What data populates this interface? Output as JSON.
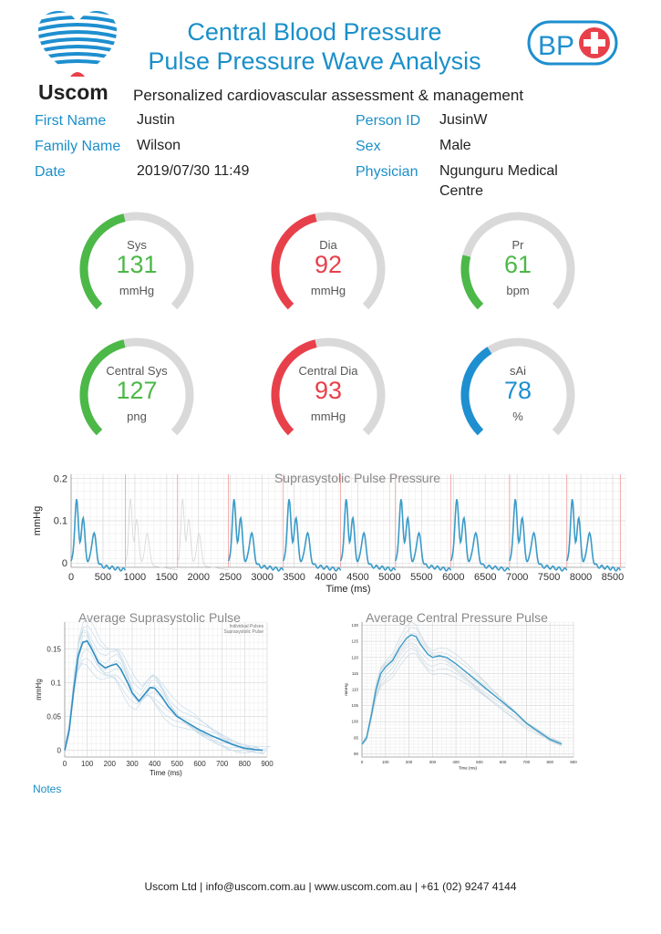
{
  "header": {
    "brand": "Uscom",
    "title_line1": "Central Blood Pressure",
    "title_line2": "Pulse Pressure Wave Analysis",
    "tagline": "Personalized cardiovascular assessment & management",
    "badge": "BP"
  },
  "patient": {
    "first_name_label": "First Name",
    "first_name": "Justin",
    "family_name_label": "Family Name",
    "family_name": "Wilson",
    "date_label": "Date",
    "date": "2019/07/30 11:49",
    "person_id_label": "Person ID",
    "person_id": "JusinW",
    "sex_label": "Sex",
    "sex": "Male",
    "physician_label": "Physician",
    "physician_line1": "Ngunguru Medical",
    "physician_line2": "Centre"
  },
  "gauges": [
    {
      "label": "Sys",
      "value": "131",
      "unit": "mmHg",
      "fraction": 0.45,
      "color": "#4cb848"
    },
    {
      "label": "Dia",
      "value": "92",
      "unit": "mmHg",
      "fraction": 0.45,
      "color": "#e8404a"
    },
    {
      "label": "Pr",
      "value": "61",
      "unit": "bpm",
      "fraction": 0.22,
      "color": "#4cb848"
    },
    {
      "label": "Central Sys",
      "value": "127",
      "unit": "png",
      "fraction": 0.45,
      "color": "#4cb848"
    },
    {
      "label": "Central Dia",
      "value": "93",
      "unit": "mmHg",
      "fraction": 0.45,
      "color": "#e8404a"
    },
    {
      "label": "sAi",
      "value": "78",
      "unit": "%",
      "fraction": 0.38,
      "color": "#1e8fd0"
    }
  ],
  "chart_data": [
    {
      "type": "line",
      "title": "Suprasystolic Pulse Pressure",
      "xlabel": "Time (ms)",
      "ylabel": "mmHg",
      "x_ticks": [
        0,
        500,
        1000,
        1500,
        2000,
        2500,
        3000,
        3500,
        4000,
        4500,
        5000,
        5500,
        6000,
        6500,
        7000,
        7500,
        8000,
        8500
      ],
      "y_ticks": [
        0,
        0.1,
        0.2
      ],
      "xlim": [
        0,
        8700
      ],
      "ylim": [
        -0.01,
        0.21
      ],
      "beat_markers": [
        850,
        1670,
        2470,
        3330,
        4230,
        5090,
        5960,
        6880,
        7780,
        8620
      ],
      "beat_starts": [
        0,
        2470,
        3330,
        4230,
        5090,
        5960,
        6880,
        7780
      ],
      "beat_durations": [
        850,
        860,
        900,
        860,
        870,
        920,
        900,
        840
      ]
    },
    {
      "type": "line",
      "title": "Average Suprasystolic Pulse",
      "xlabel": "Time (ms)",
      "ylabel": "mmHg",
      "legend": [
        "Individual Pulses",
        "Suprasystolic Pulse"
      ],
      "x_ticks": [
        0,
        100,
        200,
        300,
        400,
        500,
        600,
        700,
        800,
        900
      ],
      "y_ticks": [
        0,
        0.05,
        0.1,
        0.15
      ],
      "xlim": [
        0,
        900
      ],
      "ylim": [
        -0.01,
        0.19
      ],
      "x": [
        0,
        20,
        40,
        60,
        80,
        100,
        120,
        150,
        180,
        200,
        230,
        250,
        280,
        300,
        330,
        360,
        380,
        400,
        430,
        460,
        500,
        550,
        600,
        650,
        700,
        750,
        800,
        850,
        880
      ],
      "values": [
        0,
        0.03,
        0.09,
        0.14,
        0.16,
        0.162,
        0.15,
        0.13,
        0.122,
        0.125,
        0.128,
        0.12,
        0.1,
        0.085,
        0.073,
        0.085,
        0.093,
        0.092,
        0.08,
        0.065,
        0.05,
        0.04,
        0.03,
        0.022,
        0.015,
        0.008,
        0.003,
        0.001,
        0
      ]
    },
    {
      "type": "line",
      "title": "Average Central Pressure Pulse",
      "xlabel": "Time (ms)",
      "ylabel": "mmHg",
      "x_ticks": [
        0,
        100,
        200,
        300,
        400,
        500,
        600,
        700,
        800,
        900
      ],
      "y_ticks": [
        90,
        95,
        100,
        105,
        110,
        115,
        120,
        125,
        130
      ],
      "xlim": [
        0,
        900
      ],
      "ylim": [
        89,
        131
      ],
      "x": [
        0,
        20,
        40,
        60,
        80,
        100,
        130,
        160,
        190,
        210,
        230,
        250,
        280,
        300,
        330,
        360,
        400,
        450,
        500,
        550,
        600,
        650,
        700,
        750,
        800,
        850
      ],
      "values": [
        93,
        95,
        102,
        110,
        115,
        117,
        119,
        123,
        126,
        127,
        126.5,
        124,
        121,
        120,
        120.5,
        120,
        118,
        115,
        112,
        109,
        106,
        103,
        99.5,
        97,
        94.5,
        93
      ]
    }
  ],
  "notes_label": "Notes",
  "footer": "Uscom Ltd | info@uscom.com.au | www.uscom.com.au | +61 (02) 9247 4144"
}
